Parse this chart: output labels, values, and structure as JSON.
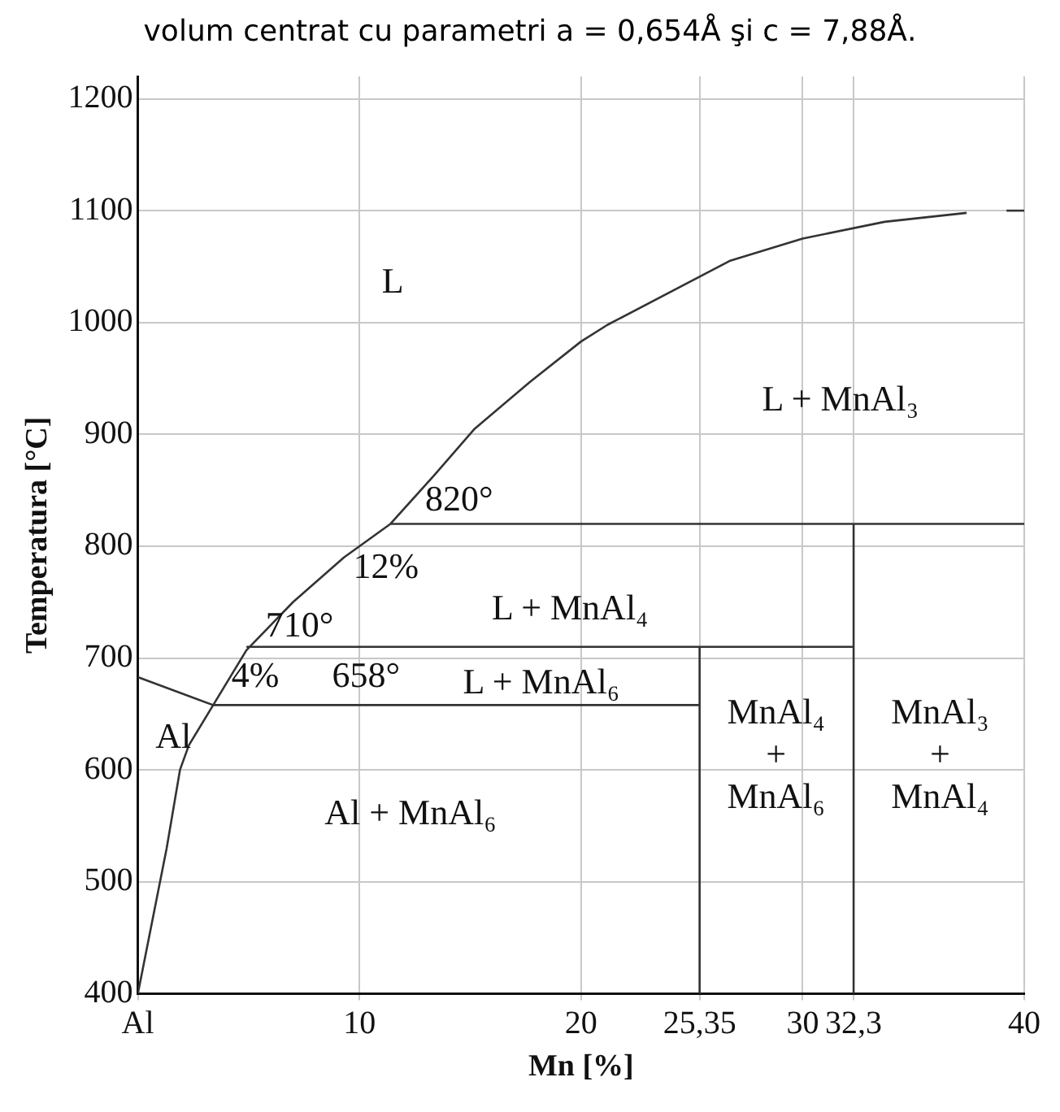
{
  "chart_data": {
    "type": "line",
    "xlabel": "Mn [%]",
    "ylabel": "Temperatura [°C]",
    "xlim": [
      0,
      40
    ],
    "ylim": [
      400,
      1220
    ],
    "xticks": [
      {
        "value": 0,
        "label": "Al"
      },
      10,
      20,
      {
        "value": 25.35,
        "label": "25,35"
      },
      30,
      {
        "value": 32.3,
        "label": "32,3"
      },
      40
    ],
    "yticks": [
      400,
      500,
      600,
      700,
      800,
      900,
      1000,
      1100,
      1200
    ],
    "grid": true,
    "legend": false,
    "marker": "none",
    "line_style": "solid",
    "series": [
      {
        "color": "#333333",
        "x": [
          0,
          1.3,
          1.9,
          2.3,
          3.4,
          4.9,
          7.0,
          9.3,
          10,
          11.4,
          13.4,
          15.2,
          17.7,
          20,
          21.2,
          26.7,
          30,
          33.7,
          37.4
        ],
        "values": [
          400,
          530,
          600,
          622,
          658,
          707,
          750,
          790,
          800,
          820,
          864,
          905,
          947,
          983,
          998,
          1055,
          1075,
          1090,
          1098
        ]
      },
      {
        "color": "#333333",
        "x": [
          39.2,
          40
        ],
        "values": [
          1100,
          1100
        ]
      },
      {
        "color": "#333333",
        "x": [
          0,
          3.4,
          25.35
        ],
        "values": [
          683,
          658,
          658
        ]
      },
      {
        "color": "#333333",
        "x": [
          11.4,
          40
        ],
        "values": [
          820,
          820
        ]
      },
      {
        "color": "#333333",
        "x": [
          4.9,
          32.3
        ],
        "values": [
          710,
          710
        ]
      },
      {
        "color": "#333333",
        "x": [
          25.35,
          25.35
        ],
        "values": [
          400,
          710
        ]
      },
      {
        "color": "#333333",
        "x": [
          32.3,
          32.3
        ],
        "values": [
          400,
          820
        ]
      }
    ],
    "annotations": [
      "volum centrat cu parametri a = 0,654Å şi c = 7,88Å.",
      "L",
      "L + MnAl₃",
      "820°",
      "12%",
      "L + MnAl₄",
      "710°",
      "4%",
      "658°",
      "L + MnAl₆",
      "Al",
      "Al + MnAl₆",
      "MnAl₄\n+\nMnAl₆",
      "MnAl₃\n+\nMnAl₄"
    ]
  }
}
